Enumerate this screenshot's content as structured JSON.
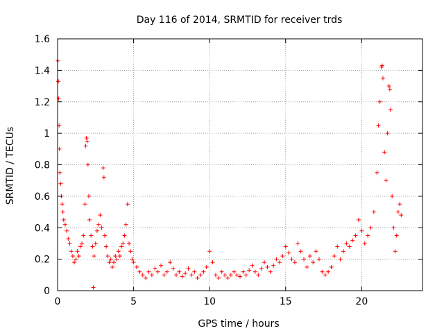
{
  "chart_data": {
    "type": "scatter",
    "title": "Day 116 of 2014, SRMTID for receiver trds",
    "xlabel": "GPS time / hours",
    "ylabel": "SRMTID / TECUs",
    "xlim": [
      0,
      24
    ],
    "ylim": [
      0,
      1.6
    ],
    "xticks": [
      0,
      5,
      10,
      15,
      20
    ],
    "xtick_labels": [
      "0",
      "5",
      "10",
      "15",
      "20"
    ],
    "yticks": [
      0,
      0.2,
      0.4,
      0.6,
      0.8,
      1,
      1.2,
      1.4,
      1.6
    ],
    "ytick_labels": [
      "0",
      "0.2",
      "0.4",
      "0.6",
      "0.8",
      "1",
      "1.2",
      "1.4",
      "1.6"
    ],
    "grid": true,
    "marker": "+",
    "color": "#ff0000",
    "series": [
      {
        "name": "SRMTID",
        "points": [
          [
            0.02,
            1.46
          ],
          [
            0.05,
            1.33
          ],
          [
            0.07,
            1.22
          ],
          [
            0.1,
            1.05
          ],
          [
            0.12,
            0.9
          ],
          [
            0.15,
            0.75
          ],
          [
            0.2,
            0.68
          ],
          [
            0.25,
            0.6
          ],
          [
            0.3,
            0.55
          ],
          [
            0.35,
            0.5
          ],
          [
            0.4,
            0.45
          ],
          [
            0.5,
            0.42
          ],
          [
            0.6,
            0.38
          ],
          [
            0.7,
            0.33
          ],
          [
            0.8,
            0.3
          ],
          [
            0.9,
            0.25
          ],
          [
            1.0,
            0.22
          ],
          [
            1.1,
            0.18
          ],
          [
            1.2,
            0.2
          ],
          [
            1.3,
            0.25
          ],
          [
            1.4,
            0.22
          ],
          [
            1.5,
            0.28
          ],
          [
            1.6,
            0.3
          ],
          [
            1.7,
            0.35
          ],
          [
            1.8,
            0.55
          ],
          [
            1.85,
            0.92
          ],
          [
            1.9,
            0.97
          ],
          [
            1.95,
            0.95
          ],
          [
            2.0,
            0.8
          ],
          [
            2.05,
            0.6
          ],
          [
            2.1,
            0.45
          ],
          [
            2.2,
            0.35
          ],
          [
            2.3,
            0.28
          ],
          [
            2.35,
            0.02
          ],
          [
            2.4,
            0.22
          ],
          [
            2.5,
            0.3
          ],
          [
            2.6,
            0.38
          ],
          [
            2.7,
            0.42
          ],
          [
            2.8,
            0.48
          ],
          [
            2.9,
            0.4
          ],
          [
            3.0,
            0.78
          ],
          [
            3.05,
            0.72
          ],
          [
            3.1,
            0.35
          ],
          [
            3.2,
            0.28
          ],
          [
            3.3,
            0.22
          ],
          [
            3.4,
            0.18
          ],
          [
            3.5,
            0.2
          ],
          [
            3.6,
            0.15
          ],
          [
            3.7,
            0.18
          ],
          [
            3.8,
            0.22
          ],
          [
            3.9,
            0.2
          ],
          [
            4.0,
            0.25
          ],
          [
            4.1,
            0.22
          ],
          [
            4.2,
            0.28
          ],
          [
            4.3,
            0.3
          ],
          [
            4.4,
            0.35
          ],
          [
            4.5,
            0.42
          ],
          [
            4.6,
            0.55
          ],
          [
            4.7,
            0.3
          ],
          [
            4.8,
            0.25
          ],
          [
            4.9,
            0.2
          ],
          [
            5.0,
            0.18
          ],
          [
            5.2,
            0.15
          ],
          [
            5.4,
            0.12
          ],
          [
            5.6,
            0.1
          ],
          [
            5.8,
            0.08
          ],
          [
            6.0,
            0.12
          ],
          [
            6.2,
            0.1
          ],
          [
            6.4,
            0.14
          ],
          [
            6.6,
            0.12
          ],
          [
            6.8,
            0.16
          ],
          [
            7.0,
            0.1
          ],
          [
            7.2,
            0.12
          ],
          [
            7.4,
            0.18
          ],
          [
            7.6,
            0.14
          ],
          [
            7.8,
            0.1
          ],
          [
            8.0,
            0.12
          ],
          [
            8.2,
            0.09
          ],
          [
            8.4,
            0.11
          ],
          [
            8.6,
            0.14
          ],
          [
            8.8,
            0.1
          ],
          [
            9.0,
            0.12
          ],
          [
            9.2,
            0.08
          ],
          [
            9.4,
            0.1
          ],
          [
            9.6,
            0.12
          ],
          [
            9.8,
            0.15
          ],
          [
            10.0,
            0.25
          ],
          [
            10.2,
            0.18
          ],
          [
            10.4,
            0.1
          ],
          [
            10.6,
            0.08
          ],
          [
            10.8,
            0.12
          ],
          [
            11.0,
            0.1
          ],
          [
            11.2,
            0.08
          ],
          [
            11.4,
            0.1
          ],
          [
            11.6,
            0.12
          ],
          [
            11.8,
            0.1
          ],
          [
            12.0,
            0.09
          ],
          [
            12.2,
            0.12
          ],
          [
            12.4,
            0.1
          ],
          [
            12.6,
            0.13
          ],
          [
            12.8,
            0.16
          ],
          [
            13.0,
            0.12
          ],
          [
            13.2,
            0.1
          ],
          [
            13.4,
            0.14
          ],
          [
            13.6,
            0.18
          ],
          [
            13.8,
            0.15
          ],
          [
            14.0,
            0.12
          ],
          [
            14.2,
            0.16
          ],
          [
            14.4,
            0.2
          ],
          [
            14.6,
            0.18
          ],
          [
            14.8,
            0.22
          ],
          [
            15.0,
            0.28
          ],
          [
            15.2,
            0.24
          ],
          [
            15.4,
            0.2
          ],
          [
            15.6,
            0.18
          ],
          [
            15.8,
            0.3
          ],
          [
            16.0,
            0.25
          ],
          [
            16.2,
            0.2
          ],
          [
            16.4,
            0.15
          ],
          [
            16.6,
            0.22
          ],
          [
            16.8,
            0.18
          ],
          [
            17.0,
            0.25
          ],
          [
            17.2,
            0.2
          ],
          [
            17.4,
            0.12
          ],
          [
            17.6,
            0.1
          ],
          [
            17.8,
            0.12
          ],
          [
            18.0,
            0.15
          ],
          [
            18.2,
            0.22
          ],
          [
            18.4,
            0.28
          ],
          [
            18.6,
            0.2
          ],
          [
            18.8,
            0.25
          ],
          [
            19.0,
            0.3
          ],
          [
            19.2,
            0.28
          ],
          [
            19.4,
            0.32
          ],
          [
            19.6,
            0.35
          ],
          [
            19.8,
            0.45
          ],
          [
            20.0,
            0.38
          ],
          [
            20.2,
            0.3
          ],
          [
            20.4,
            0.35
          ],
          [
            20.6,
            0.4
          ],
          [
            20.8,
            0.5
          ],
          [
            21.0,
            0.75
          ],
          [
            21.1,
            1.05
          ],
          [
            21.2,
            1.2
          ],
          [
            21.3,
            1.42
          ],
          [
            21.35,
            1.43
          ],
          [
            21.4,
            1.35
          ],
          [
            21.5,
            0.88
          ],
          [
            21.6,
            0.7
          ],
          [
            21.7,
            1.0
          ],
          [
            21.8,
            1.3
          ],
          [
            21.85,
            1.28
          ],
          [
            21.9,
            1.15
          ],
          [
            22.0,
            0.6
          ],
          [
            22.1,
            0.4
          ],
          [
            22.2,
            0.25
          ],
          [
            22.3,
            0.35
          ],
          [
            22.4,
            0.5
          ],
          [
            22.5,
            0.55
          ],
          [
            22.6,
            0.48
          ]
        ]
      }
    ]
  }
}
